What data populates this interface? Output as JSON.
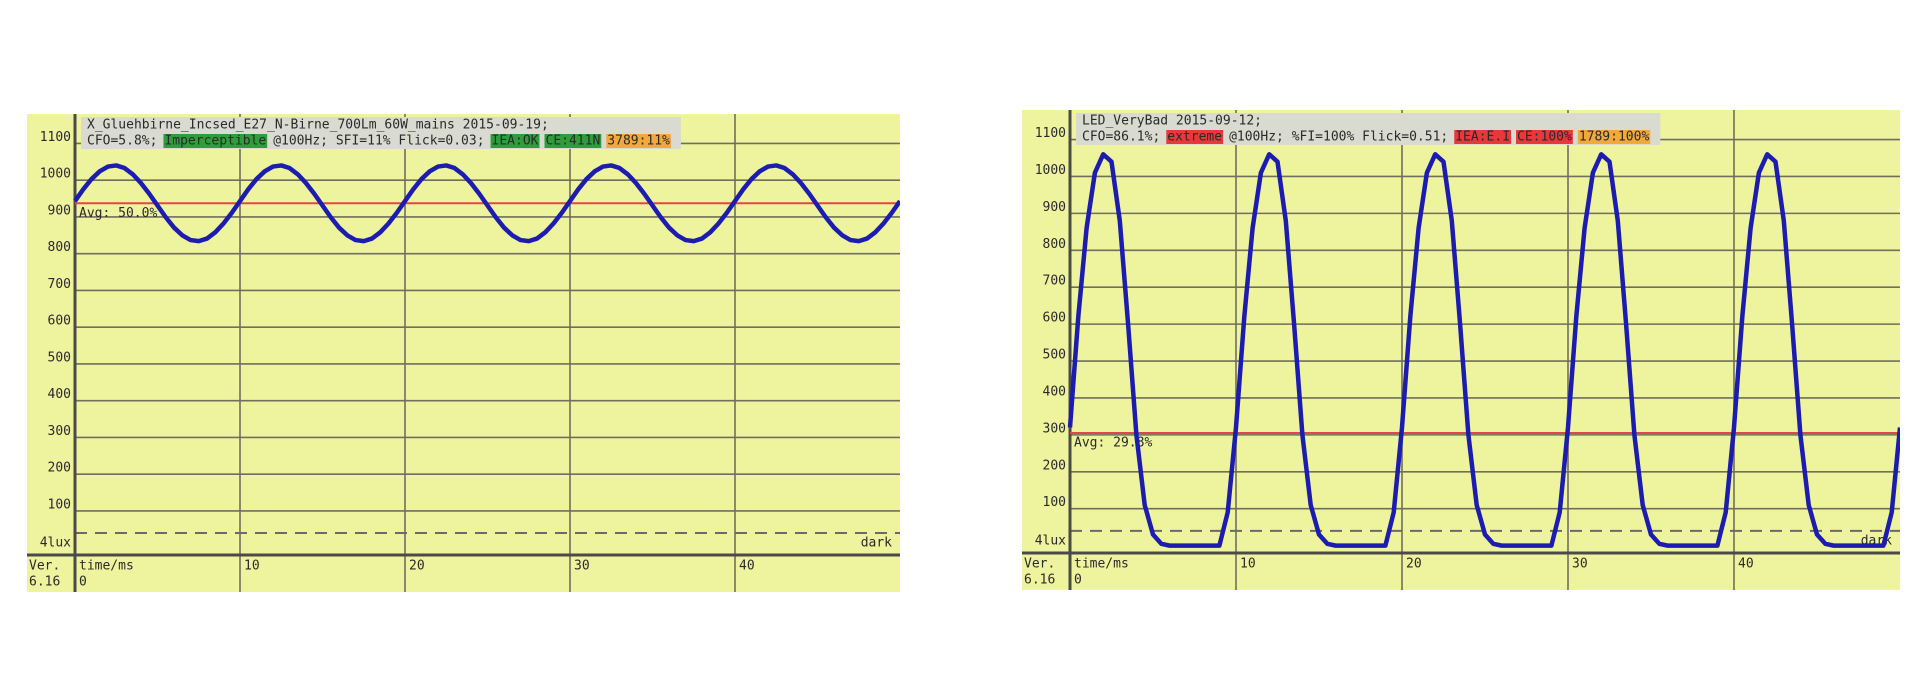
{
  "chart_data": [
    {
      "type": "line",
      "title": "X_Gluehbirne_Incsed_E27_N-Birne_700Lm_60W_mains   2015-09-19;",
      "status_line": [
        {
          "text": "CFO=5.8%;"
        },
        {
          "text": "Imperceptible",
          "badge": "#2f9e3a"
        },
        {
          "text": "@100Hz; SFI=11% Flick=0.03;"
        },
        {
          "text": "IEA:OK",
          "badge": "#2f9e3a"
        },
        {
          "text": "CE:411N",
          "badge": "#2f9e3a"
        },
        {
          "text": "3789:11%",
          "badge": "#f2a93b"
        }
      ],
      "x_label": "time/ms",
      "version": [
        "Ver.",
        "6.16"
      ],
      "x": [
        0,
        0.5,
        1,
        1.5,
        2,
        2.5,
        3,
        3.5,
        4,
        4.5,
        5,
        5.5,
        6,
        6.5,
        7,
        7.5,
        8,
        8.5,
        9,
        9.5,
        10,
        10.5,
        11,
        11.5,
        12,
        12.5,
        13,
        13.5,
        14,
        14.5,
        15,
        15.5,
        16,
        16.5,
        17,
        17.5,
        18,
        18.5,
        19,
        19.5,
        20,
        20.5,
        21,
        21.5,
        22,
        22.5,
        23,
        23.5,
        24,
        24.5,
        25,
        25.5,
        26,
        26.5,
        27,
        27.5,
        28,
        28.5,
        29,
        29.5,
        30,
        30.5,
        31,
        31.5,
        32,
        32.5,
        33,
        33.5,
        34,
        34.5,
        35,
        35.5,
        36,
        36.5,
        37,
        37.5,
        38,
        38.5,
        39,
        39.5,
        40,
        40.5,
        41,
        41.5,
        42,
        42.5,
        43,
        43.5,
        44,
        44.5,
        45,
        45.5,
        46,
        46.5,
        47,
        47.5,
        48,
        48.5,
        49,
        49.5,
        50
      ],
      "series": [
        {
          "color": "#1c1cb0",
          "values": [
            943,
            975,
            1003,
            1024,
            1037,
            1040,
            1033,
            1016,
            992,
            963,
            931,
            899,
            871,
            850,
            837,
            834,
            841,
            858,
            882,
            911,
            943,
            975,
            1003,
            1024,
            1037,
            1040,
            1033,
            1016,
            992,
            963,
            931,
            899,
            871,
            850,
            837,
            834,
            841,
            858,
            882,
            911,
            943,
            975,
            1003,
            1024,
            1037,
            1040,
            1033,
            1016,
            992,
            963,
            931,
            899,
            871,
            850,
            837,
            834,
            841,
            858,
            882,
            911,
            943,
            975,
            1003,
            1024,
            1037,
            1040,
            1033,
            1016,
            992,
            963,
            931,
            899,
            871,
            850,
            837,
            834,
            841,
            858,
            882,
            911,
            943,
            975,
            1003,
            1024,
            1037,
            1040,
            1033,
            1016,
            992,
            963,
            931,
            899,
            871,
            850,
            837,
            834,
            841,
            858,
            882,
            911,
            943
          ]
        }
      ],
      "avg_level": 937,
      "avg_label": "Avg: 50.0%",
      "avg_color": "#e04848",
      "threshold": {
        "value": 40,
        "label": "4lux"
      },
      "threshold_note": "dark",
      "xlim": [
        0,
        50
      ],
      "xticks": [
        0,
        10,
        20,
        30,
        40
      ],
      "ylim": [
        -20,
        1180
      ],
      "yticks": [
        100,
        200,
        300,
        400,
        500,
        600,
        700,
        800,
        900,
        1000,
        1100
      ],
      "grid": true,
      "background": "#eef39e"
    },
    {
      "type": "line",
      "title": "LED_VeryBad   2015-09-12;",
      "status_line": [
        {
          "text": "CFO=86.1%;"
        },
        {
          "text": "extreme",
          "badge": "#e8383a"
        },
        {
          "text": "@100Hz; %FI=100% Flick=0.51;"
        },
        {
          "text": "IEA:E.I",
          "badge": "#e8383a"
        },
        {
          "text": "CE:100%",
          "badge": "#e8383a"
        },
        {
          "text": "1789:100%",
          "badge": "#f2a93b"
        }
      ],
      "x_label": "time/ms",
      "version": [
        "Ver.",
        "6.16"
      ],
      "x": [
        0,
        0.5,
        1,
        1.5,
        2,
        2.5,
        3,
        3.5,
        4,
        4.5,
        5,
        5.5,
        6,
        6.5,
        7,
        7.5,
        8,
        8.5,
        9,
        9.5,
        10,
        10.5,
        11,
        11.5,
        12,
        12.5,
        13,
        13.5,
        14,
        14.5,
        15,
        15.5,
        16,
        16.5,
        17,
        17.5,
        18,
        18.5,
        19,
        19.5,
        20,
        20.5,
        21,
        21.5,
        22,
        22.5,
        23,
        23.5,
        24,
        24.5,
        25,
        25.5,
        26,
        26.5,
        27,
        27.5,
        28,
        28.5,
        29,
        29.5,
        30,
        30.5,
        31,
        31.5,
        32,
        32.5,
        33,
        33.5,
        34,
        34.5,
        35,
        35.5,
        36,
        36.5,
        37,
        37.5,
        38,
        38.5,
        39,
        39.5,
        40,
        40.5,
        41,
        41.5,
        42,
        42.5,
        43,
        43.5,
        44,
        44.5,
        45,
        45.5,
        46,
        46.5,
        47,
        47.5,
        48,
        48.5,
        49,
        49.5,
        50
      ],
      "series": [
        {
          "color": "#1c1cb0",
          "values": [
            320,
            620,
            860,
            1010,
            1060,
            1040,
            880,
            600,
            300,
            110,
            30,
            5,
            0,
            0,
            0,
            0,
            0,
            0,
            0,
            90,
            320,
            620,
            860,
            1010,
            1060,
            1040,
            880,
            600,
            300,
            110,
            30,
            5,
            0,
            0,
            0,
            0,
            0,
            0,
            0,
            90,
            320,
            620,
            860,
            1010,
            1060,
            1040,
            880,
            600,
            300,
            110,
            30,
            5,
            0,
            0,
            0,
            0,
            0,
            0,
            0,
            90,
            320,
            620,
            860,
            1010,
            1060,
            1040,
            880,
            600,
            300,
            110,
            30,
            5,
            0,
            0,
            0,
            0,
            0,
            0,
            0,
            90,
            320,
            620,
            860,
            1010,
            1060,
            1040,
            880,
            600,
            300,
            110,
            30,
            5,
            0,
            0,
            0,
            0,
            0,
            0,
            0,
            90,
            320
          ]
        }
      ],
      "avg_level": 305,
      "avg_label": "Avg: 29.8%",
      "avg_color": "#e04848",
      "threshold": {
        "value": 40,
        "label": "4lux"
      },
      "threshold_note": "dark",
      "xlim": [
        0,
        50
      ],
      "xticks": [
        0,
        10,
        20,
        30,
        40
      ],
      "ylim": [
        -20,
        1180
      ],
      "yticks": [
        100,
        200,
        300,
        400,
        500,
        600,
        700,
        800,
        900,
        1000,
        1100
      ],
      "grid": true,
      "background": "#eef39e"
    }
  ]
}
